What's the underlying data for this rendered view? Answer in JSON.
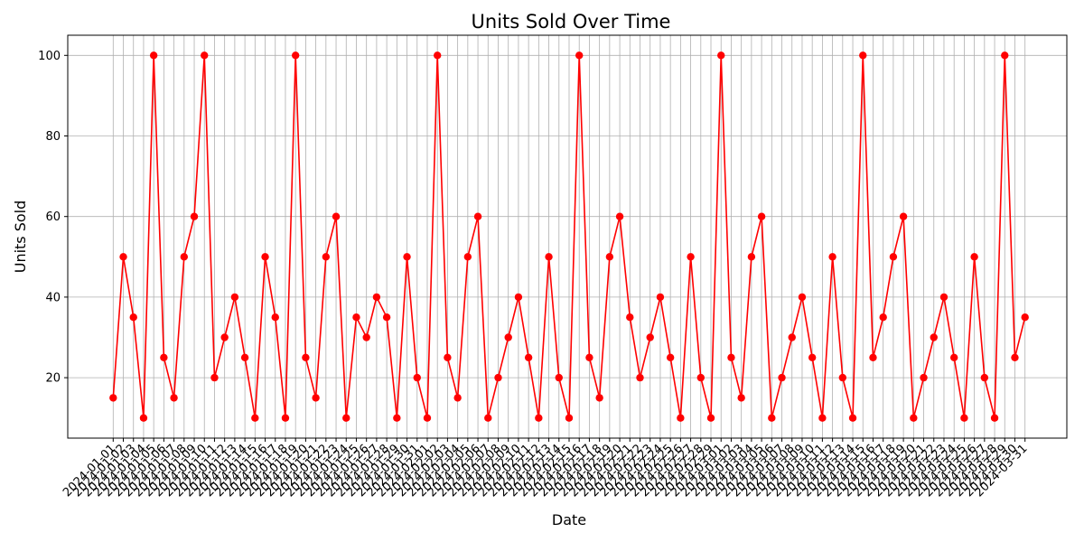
{
  "chart_data": {
    "type": "line",
    "title": "Units Sold Over Time",
    "xlabel": "Date",
    "ylabel": "Units Sold",
    "ylim": [
      5,
      105
    ],
    "yticks": [
      20,
      40,
      60,
      80,
      100
    ],
    "grid": true,
    "series_color": "#ff0000",
    "x": [
      "2024-01-01",
      "2024-01-02",
      "2024-01-03",
      "2024-01-04",
      "2024-01-05",
      "2024-01-06",
      "2024-01-07",
      "2024-01-08",
      "2024-01-09",
      "2024-01-10",
      "2024-01-11",
      "2024-01-12",
      "2024-01-13",
      "2024-01-14",
      "2024-01-15",
      "2024-01-16",
      "2024-01-17",
      "2024-01-18",
      "2024-01-19",
      "2024-01-20",
      "2024-01-21",
      "2024-01-22",
      "2024-01-23",
      "2024-01-24",
      "2024-01-25",
      "2024-01-26",
      "2024-01-27",
      "2024-01-28",
      "2024-01-29",
      "2024-01-30",
      "2024-01-31",
      "2024-02-01",
      "2024-02-02",
      "2024-02-03",
      "2024-02-04",
      "2024-02-05",
      "2024-02-06",
      "2024-02-07",
      "2024-02-08",
      "2024-02-09",
      "2024-02-10",
      "2024-02-11",
      "2024-02-12",
      "2024-02-13",
      "2024-02-14",
      "2024-02-15",
      "2024-02-16",
      "2024-02-17",
      "2024-02-18",
      "2024-02-19",
      "2024-02-20",
      "2024-02-21",
      "2024-02-22",
      "2024-02-23",
      "2024-02-24",
      "2024-02-25",
      "2024-02-26",
      "2024-02-27",
      "2024-02-28",
      "2024-02-29",
      "2024-03-01",
      "2024-03-02",
      "2024-03-03",
      "2024-03-04",
      "2024-03-05",
      "2024-03-06",
      "2024-03-07",
      "2024-03-08",
      "2024-03-09",
      "2024-03-10",
      "2024-03-11",
      "2024-03-12",
      "2024-03-13",
      "2024-03-14",
      "2024-03-15",
      "2024-03-16",
      "2024-03-17",
      "2024-03-18",
      "2024-03-19",
      "2024-03-20",
      "2024-03-21",
      "2024-03-22",
      "2024-03-23",
      "2024-03-24",
      "2024-03-25",
      "2024-03-26",
      "2024-03-27",
      "2024-03-28",
      "2024-03-29",
      "2024-03-30",
      "2024-03-31"
    ],
    "values": [
      15,
      50,
      35,
      10,
      100,
      25,
      15,
      50,
      60,
      100,
      20,
      30,
      40,
      25,
      10,
      50,
      35,
      10,
      100,
      25,
      15,
      50,
      60,
      10,
      35,
      30,
      40,
      35,
      10,
      50,
      20,
      10,
      100,
      25,
      15,
      50,
      60,
      10,
      20,
      30,
      40,
      25,
      10,
      50,
      20,
      10,
      100,
      25,
      15,
      50,
      60,
      35,
      20,
      30,
      40,
      25,
      10,
      50,
      20,
      10,
      100,
      25,
      15,
      50,
      60,
      10,
      20,
      30,
      40,
      25,
      10,
      50,
      20,
      10,
      100,
      25,
      35,
      50,
      60,
      10,
      20,
      30,
      40,
      25,
      10,
      50,
      20,
      10,
      100,
      25,
      35
    ]
  }
}
